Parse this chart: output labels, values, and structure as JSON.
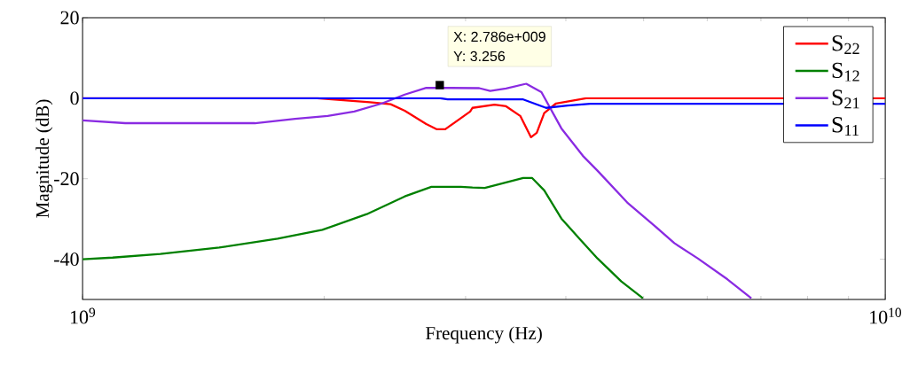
{
  "chart_data": {
    "type": "line",
    "xlabel": "Frequency (Hz)",
    "ylabel": "Magnitude (dB)",
    "log": "x",
    "legend": "top right",
    "grid": false,
    "xlim": [
      1000000000.0,
      10000000000.0
    ],
    "xticks": [
      {
        "value": 1000000000.0,
        "label": "10$^{9}$"
      },
      {
        "value": 10000000000.0,
        "label": "10$^{10}$"
      }
    ],
    "ylim": [
      -50,
      20
    ],
    "yticks": [
      -40,
      -20,
      0,
      20
    ],
    "annotations": [
      "X: 2.786e+009",
      "Y: 3.256"
    ],
    "series": [
      {
        "name": "S$_{22}$",
        "color": "#ff0000",
        "x": [
          1000000000.0,
          1960000000.0,
          2280000000.0,
          2420000000.0,
          2520000000.0,
          2680000000.0,
          2760000000.0,
          2830000000.0,
          3040000000.0,
          3060000000.0,
          3260000000.0,
          3370000000.0,
          3510000000.0,
          3620000000.0,
          3680000000.0,
          3760000000.0,
          3890000000.0,
          4240000000.0,
          10000000000.0
        ],
        "values": [
          0,
          0,
          -1,
          -1.5,
          -3.1,
          -6.4,
          -7.7,
          -7.7,
          -3.3,
          -2.4,
          -1.6,
          -2,
          -4.4,
          -9.7,
          -8.6,
          -3.7,
          -1.3,
          0,
          0
        ]
      },
      {
        "name": "S$_{12}$",
        "color": "#008000",
        "x": [
          1000000000.0,
          1090000000.0,
          1250000000.0,
          1480000000.0,
          1750000000.0,
          1990000000.0,
          2260000000.0,
          2520000000.0,
          2720000000.0,
          2960000000.0,
          3060000000.0,
          3170000000.0,
          3540000000.0,
          3630000000.0,
          3760000000.0,
          3950000000.0,
          4160000000.0,
          4380000000.0,
          4690000000.0,
          4990000000.0
        ],
        "values": [
          -40,
          -39.6,
          -38.7,
          -37.1,
          -34.9,
          -32.7,
          -28.8,
          -24.4,
          -22,
          -22,
          -22.2,
          -22.3,
          -19.8,
          -19.8,
          -22.9,
          -29.9,
          -34.9,
          -39.8,
          -45.5,
          -49.7
        ]
      },
      {
        "name": "S$_{21}$",
        "color": "#8a2be2",
        "x": [
          1000000000.0,
          1130000000.0,
          1640000000.0,
          1840000000.0,
          2020000000.0,
          2180000000.0,
          2360000000.0,
          2520000000.0,
          2680000000.0,
          3120000000.0,
          3220000000.0,
          3370000000.0,
          3570000000.0,
          3730000000.0,
          3950000000.0,
          4200000000.0,
          4380000000.0,
          4770000000.0,
          5140000000.0,
          5460000000.0,
          5840000000.0,
          6360000000.0,
          6810000000.0
        ],
        "values": [
          -5.5,
          -6.2,
          -6.2,
          -5.1,
          -4.4,
          -3.3,
          -1.3,
          0.9,
          2.6,
          2.5,
          1.8,
          2.4,
          3.6,
          1.5,
          -7.5,
          -14.3,
          -18,
          -25.9,
          -31.4,
          -36,
          -39.8,
          -45,
          -49.7
        ]
      },
      {
        "name": "S$_{11}$",
        "color": "#0000ff",
        "x": [
          1000000000.0,
          2790000000.0,
          2850000000.0,
          3540000000.0,
          3780000000.0,
          4020000000.0,
          4290000000.0,
          10000000000.0
        ],
        "values": [
          0,
          0,
          -0.3,
          -0.3,
          -2.4,
          -1.8,
          -1.4,
          -1.4
        ]
      },
      {
        "type": "scatter",
        "marker": "square",
        "color": "#000000",
        "x": [
          2786000000.0
        ],
        "values": [
          3.256
        ]
      }
    ]
  }
}
